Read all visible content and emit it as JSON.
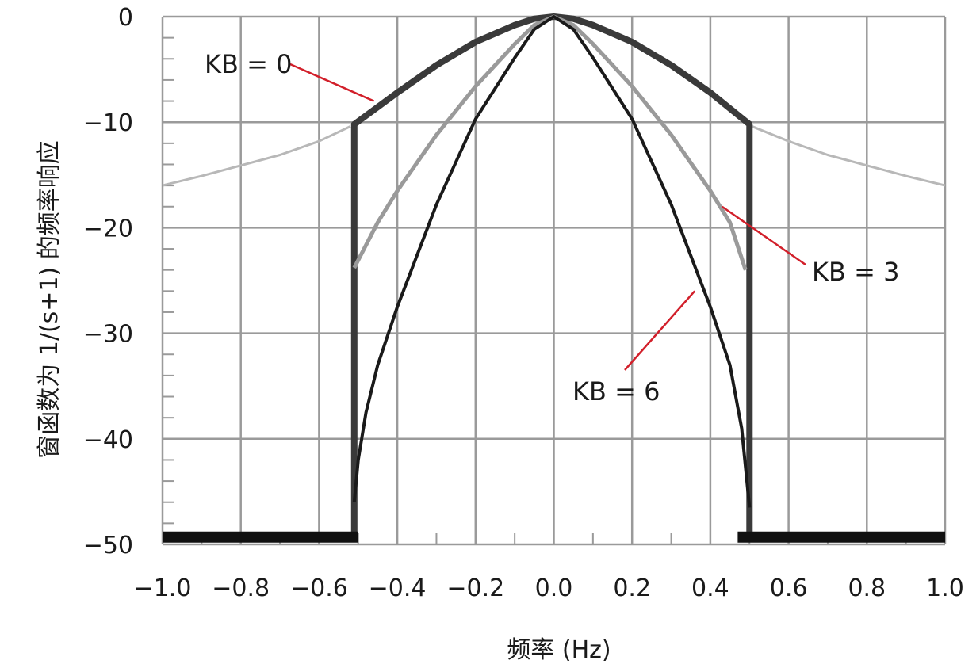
{
  "chart_data": {
    "type": "line",
    "xlabel": "频率 (Hz)",
    "ylabel": "窗函数为 1/(s+1) 的频率响应",
    "xlim": [
      -1.0,
      1.0
    ],
    "ylim": [
      -50,
      0
    ],
    "x_ticks": [
      "−1.0",
      "−0.8",
      "−0.6",
      "−0.4",
      "−0.2",
      "0.0",
      "0.2",
      "0.4",
      "0.6",
      "0.8",
      "1.0"
    ],
    "y_ticks": [
      "0",
      "−10",
      "−20",
      "−30",
      "−40",
      "−50"
    ],
    "grid": true,
    "series": [
      {
        "key": "unwindowed",
        "color": "#b8b8b8",
        "points": [
          [
            -1.0,
            -16.0
          ],
          [
            -0.9,
            -15.1
          ],
          [
            -0.8,
            -14.1
          ],
          [
            -0.7,
            -13.1
          ],
          [
            -0.6,
            -11.8
          ],
          [
            -0.52,
            -10.4
          ]
        ]
      },
      {
        "key": "unwindowed-right",
        "color": "#b8b8b8",
        "points": [
          [
            0.5,
            -10.3
          ],
          [
            0.6,
            -11.8
          ],
          [
            0.7,
            -13.1
          ],
          [
            0.8,
            -14.1
          ],
          [
            0.9,
            -15.1
          ],
          [
            1.0,
            -16.0
          ]
        ]
      },
      {
        "key": "kb0",
        "color": "#3a3a3a",
        "points": [
          [
            -0.51,
            -49.0
          ],
          [
            -0.51,
            -10.2
          ],
          [
            -0.4,
            -7.2
          ],
          [
            -0.3,
            -4.6
          ],
          [
            -0.2,
            -2.4
          ],
          [
            -0.1,
            -0.8
          ],
          [
            -0.05,
            -0.2
          ],
          [
            0.0,
            0.0
          ],
          [
            0.05,
            -0.2
          ],
          [
            0.1,
            -0.8
          ],
          [
            0.2,
            -2.4
          ],
          [
            0.3,
            -4.6
          ],
          [
            0.4,
            -7.2
          ],
          [
            0.5,
            -10.2
          ],
          [
            0.5,
            -49.0
          ]
        ]
      },
      {
        "key": "kb3",
        "color": "#9a9a9a",
        "points": [
          [
            -0.51,
            -23.8
          ],
          [
            -0.45,
            -19.5
          ],
          [
            -0.4,
            -16.5
          ],
          [
            -0.3,
            -11.2
          ],
          [
            -0.2,
            -6.6
          ],
          [
            -0.1,
            -2.6
          ],
          [
            -0.05,
            -0.8
          ],
          [
            0.0,
            0.0
          ],
          [
            0.05,
            -0.8
          ],
          [
            0.1,
            -2.6
          ],
          [
            0.2,
            -6.6
          ],
          [
            0.3,
            -11.2
          ],
          [
            0.4,
            -16.5
          ],
          [
            0.45,
            -19.5
          ],
          [
            0.49,
            -24.0
          ]
        ]
      },
      {
        "key": "kb6",
        "color": "#1a1a1a",
        "points": [
          [
            -0.51,
            -46.0
          ],
          [
            -0.5,
            -42.0
          ],
          [
            -0.48,
            -37.5
          ],
          [
            -0.45,
            -33.0
          ],
          [
            -0.4,
            -27.5
          ],
          [
            -0.3,
            -17.8
          ],
          [
            -0.2,
            -9.7
          ],
          [
            -0.1,
            -3.9
          ],
          [
            -0.05,
            -1.2
          ],
          [
            0.0,
            0.0
          ],
          [
            0.05,
            -1.2
          ],
          [
            0.1,
            -3.9
          ],
          [
            0.2,
            -9.7
          ],
          [
            0.3,
            -17.8
          ],
          [
            0.4,
            -27.5
          ],
          [
            0.45,
            -33.0
          ],
          [
            0.48,
            -39.0
          ],
          [
            0.5,
            -46.5
          ]
        ]
      },
      {
        "key": "floor-left",
        "color": "#111111",
        "points": [
          [
            -1.0,
            -49.3
          ],
          [
            -0.5,
            -49.3
          ]
        ]
      },
      {
        "key": "floor-right",
        "color": "#111111",
        "points": [
          [
            0.47,
            -49.3
          ],
          [
            1.0,
            -49.3
          ]
        ]
      }
    ],
    "annotations": [
      {
        "key": "kb0",
        "text": "KB = 0",
        "tip": [
          -0.46,
          -8.0
        ]
      },
      {
        "key": "kb3",
        "text": "KB = 3",
        "tip": [
          0.43,
          -18.0
        ]
      },
      {
        "key": "kb6",
        "text": "KB = 6",
        "tip": [
          0.36,
          -26.0
        ]
      }
    ],
    "colors": {
      "grid": "#9a9a9a",
      "annotation_line": "#d21f2a",
      "text": "#1a1a1a"
    }
  }
}
